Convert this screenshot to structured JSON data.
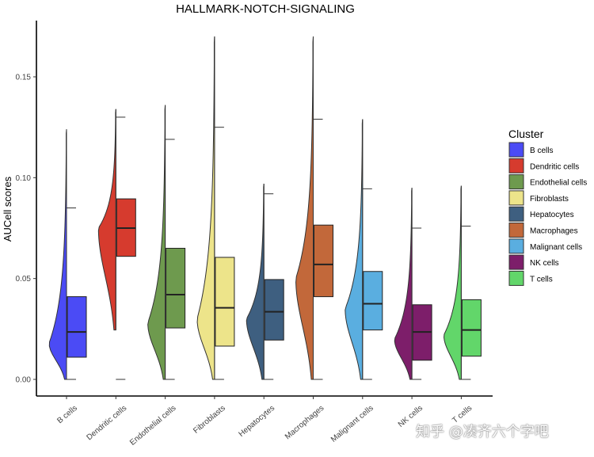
{
  "chart_data": {
    "type": "violin-box",
    "title": "HALLMARK-NOTCH-SIGNALING",
    "xlabel": "",
    "ylabel": "AUCell scores",
    "ylim": [
      -0.008,
      0.18
    ],
    "yticks": [
      0.0,
      0.05,
      0.1,
      0.15
    ],
    "ytick_labels": [
      "0.00",
      "0.05",
      "0.10",
      "0.15"
    ],
    "legend_title": "Cluster",
    "legend_position": "right",
    "categories": [
      "B cells",
      "Dendritic cells",
      "Endothelial cells",
      "Fibroblasts",
      "Hepatocytes",
      "Macrophages",
      "Malignant cells",
      "NK cells",
      "T cells"
    ],
    "colors": [
      "#4b4bf5",
      "#d63b2e",
      "#6e9a4e",
      "#ede48a",
      "#3e5f80",
      "#c2683a",
      "#5aaee0",
      "#7d1e6a",
      "#62d66a"
    ],
    "series": [
      {
        "name": "B cells",
        "min": 0.0,
        "q1": 0.011,
        "median": 0.0235,
        "q3": 0.041,
        "whisker_high": 0.085,
        "max": 0.124,
        "mode": 0.018
      },
      {
        "name": "Dendritic cells",
        "min": 0.0245,
        "q1": 0.061,
        "median": 0.075,
        "q3": 0.0895,
        "whisker_high": 0.13,
        "max": 0.134,
        "mode": 0.075
      },
      {
        "name": "Endothelial cells",
        "min": 0.0,
        "q1": 0.0255,
        "median": 0.042,
        "q3": 0.065,
        "whisker_high": 0.119,
        "max": 0.136,
        "mode": 0.028
      },
      {
        "name": "Fibroblasts",
        "min": 0.0,
        "q1": 0.0165,
        "median": 0.0355,
        "q3": 0.0605,
        "whisker_high": 0.125,
        "max": 0.17,
        "mode": 0.03
      },
      {
        "name": "Hepatocytes",
        "min": 0.0,
        "q1": 0.0195,
        "median": 0.0335,
        "q3": 0.0495,
        "whisker_high": 0.092,
        "max": 0.097,
        "mode": 0.03
      },
      {
        "name": "Macrophages",
        "min": 0.0,
        "q1": 0.041,
        "median": 0.057,
        "q3": 0.0765,
        "whisker_high": 0.129,
        "max": 0.17,
        "mode": 0.05
      },
      {
        "name": "Malignant cells",
        "min": 0.0,
        "q1": 0.0245,
        "median": 0.0375,
        "q3": 0.0535,
        "whisker_high": 0.0945,
        "max": 0.129,
        "mode": 0.035
      },
      {
        "name": "NK cells",
        "min": 0.0,
        "q1": 0.0095,
        "median": 0.0235,
        "q3": 0.037,
        "whisker_high": 0.075,
        "max": 0.095,
        "mode": 0.02
      },
      {
        "name": "T cells",
        "min": 0.0,
        "q1": 0.0115,
        "median": 0.0245,
        "q3": 0.0395,
        "whisker_high": 0.076,
        "max": 0.096,
        "mode": 0.022
      }
    ]
  },
  "watermark": "知乎 @凑齐六个字吧"
}
